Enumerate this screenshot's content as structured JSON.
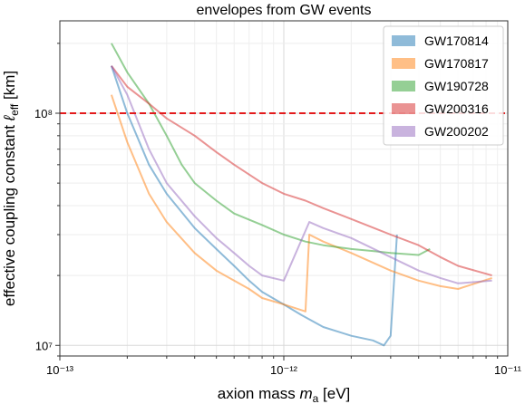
{
  "chart_data": {
    "type": "line",
    "title": "envelopes from GW events",
    "xlabel": "axion mass m_a [eV]",
    "ylabel": "effective coupling constant ℓ_eff [km]",
    "xscale": "log",
    "yscale": "log",
    "xlim": [
      1e-13,
      1e-11
    ],
    "ylim": [
      9000000.0,
      250000000.0
    ],
    "x_ticks": [
      {
        "value": 1e-13,
        "label": "10⁻¹³"
      },
      {
        "value": 1e-12,
        "label": "10⁻¹²"
      },
      {
        "value": 1e-11,
        "label": "10⁻¹¹"
      }
    ],
    "y_ticks": [
      {
        "value": 10000000.0,
        "label": "10⁷"
      },
      {
        "value": 100000000.0,
        "label": "10⁸"
      }
    ],
    "grid": true,
    "legend_position": "top-right",
    "reference_line": {
      "y": 100000000.0,
      "color": "#e31a1c",
      "style": "dashed"
    },
    "series": [
      {
        "name": "GW170814",
        "color": "#1f77b4",
        "x": [
          1.7e-13,
          2e-13,
          2.5e-13,
          3e-13,
          4e-13,
          5e-13,
          6e-13,
          7e-13,
          8e-13,
          1e-12,
          1.2e-12,
          1.5e-12,
          2e-12,
          2.5e-12,
          2.8e-12,
          3e-12,
          3.2e-12
        ],
        "y": [
          160000000.0,
          100000000.0,
          60000000.0,
          45000000.0,
          32000000.0,
          26000000.0,
          22000000.0,
          19000000.0,
          17000000.0,
          15000000.0,
          13500000.0,
          12000000.0,
          11000000.0,
          10500000.0,
          10000000.0,
          11000000.0,
          30000000.0
        ]
      },
      {
        "name": "GW170817",
        "color": "#ff7f0e",
        "x": [
          1.7e-13,
          2e-13,
          2.5e-13,
          3e-13,
          4e-13,
          5e-13,
          6e-13,
          7e-13,
          8e-13,
          1e-12,
          1.25e-12,
          1.3e-12,
          1.5e-12,
          2e-12,
          3e-12,
          4e-12,
          5e-12,
          6e-12,
          8.5e-12
        ],
        "y": [
          120000000.0,
          75000000.0,
          45000000.0,
          34000000.0,
          25000000.0,
          21000000.0,
          19000000.0,
          17500000.0,
          16000000.0,
          15000000.0,
          14000000.0,
          30000000.0,
          28000000.0,
          25000000.0,
          21000000.0,
          19000000.0,
          18000000.0,
          17500000.0,
          19500000.0
        ]
      },
      {
        "name": "GW190728",
        "color": "#2ca02c",
        "x": [
          1.7e-13,
          2e-13,
          2.5e-13,
          3e-13,
          3.5e-13,
          4e-13,
          5e-13,
          6e-13,
          8e-13,
          1e-12,
          1.25e-12,
          1.5e-12,
          2e-12,
          2.5e-12,
          3e-12,
          4e-12,
          4.5e-12
        ],
        "y": [
          200000000.0,
          150000000.0,
          110000000.0,
          80000000.0,
          60000000.0,
          50000000.0,
          42000000.0,
          37000000.0,
          33000000.0,
          30000000.0,
          28000000.0,
          27000000.0,
          26000000.0,
          25500000.0,
          25000000.0,
          24500000.0,
          26000000.0
        ]
      },
      {
        "name": "GW200316",
        "color": "#d62728",
        "x": [
          1.7e-13,
          2e-13,
          2.5e-13,
          3e-13,
          4e-13,
          5e-13,
          6e-13,
          8e-13,
          1e-12,
          1.25e-12,
          1.5e-12,
          2e-12,
          3e-12,
          4e-12,
          5e-12,
          6e-12,
          8.5e-12
        ],
        "y": [
          160000000.0,
          130000000.0,
          110000000.0,
          95000000.0,
          80000000.0,
          68000000.0,
          60000000.0,
          50000000.0,
          45000000.0,
          42000000.0,
          39000000.0,
          35000000.0,
          30000000.0,
          27000000.0,
          24000000.0,
          22000000.0,
          20000000.0
        ]
      },
      {
        "name": "GW200202",
        "color": "#9467bd",
        "x": [
          1.7e-13,
          2e-13,
          2.5e-13,
          3e-13,
          4e-13,
          5e-13,
          6e-13,
          7e-13,
          8e-13,
          1e-12,
          1.3e-12,
          1.5e-12,
          2e-12,
          3e-12,
          4e-12,
          5e-12,
          6e-12,
          8.5e-12
        ],
        "y": [
          160000000.0,
          120000000.0,
          70000000.0,
          50000000.0,
          36000000.0,
          29000000.0,
          25000000.0,
          22000000.0,
          20000000.0,
          19000000.0,
          34000000.0,
          32000000.0,
          29000000.0,
          24000000.0,
          21000000.0,
          19500000.0,
          18500000.0,
          19000000.0
        ]
      }
    ]
  }
}
